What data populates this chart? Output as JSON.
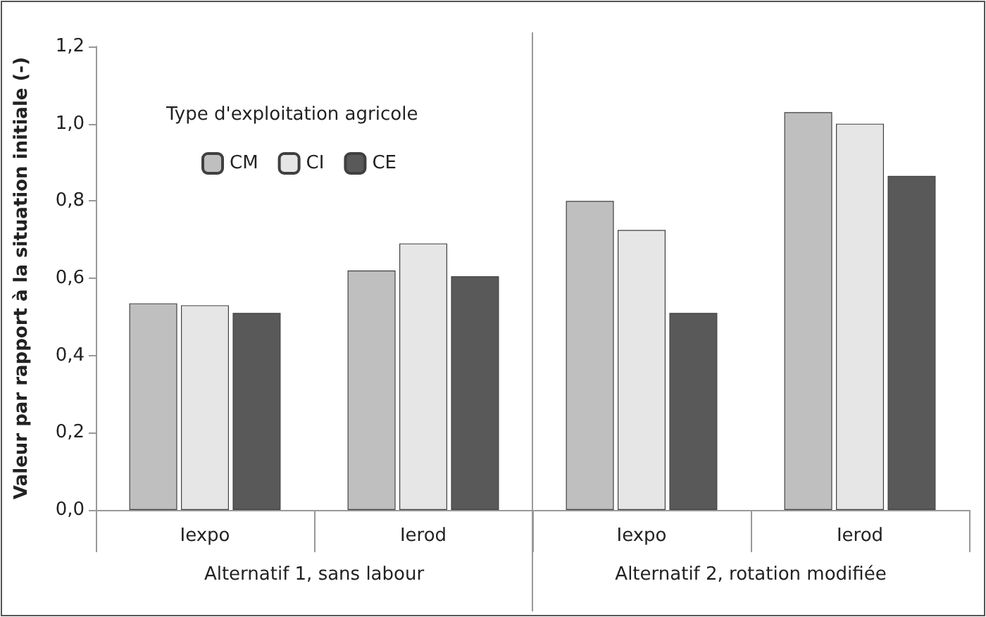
{
  "chart_data": {
    "type": "bar",
    "ylabel": "Valeur par rapport à la situation initiale (-)",
    "legend_title": "Type d'exploitation agricole",
    "categories": [
      "Iexpo",
      "Ierod",
      "Iexpo",
      "Ierod"
    ],
    "series": [
      {
        "name": "CM",
        "color": "#bfbfbf",
        "values": [
          0.535,
          0.62,
          0.8,
          1.03
        ]
      },
      {
        "name": "CI",
        "color": "#e6e6e6",
        "values": [
          0.53,
          0.69,
          0.725,
          1.0
        ]
      },
      {
        "name": "CE",
        "color": "#595959",
        "values": [
          0.51,
          0.605,
          0.51,
          0.865
        ]
      }
    ],
    "ylim": [
      0,
      1.2
    ],
    "yticks": [
      {
        "value": 0,
        "label": "0,0"
      },
      {
        "value": 0.2,
        "label": "0,2"
      },
      {
        "value": 0.4,
        "label": "0,4"
      },
      {
        "value": 0.6,
        "label": "0,6"
      },
      {
        "value": 0.8,
        "label": "0,8"
      },
      {
        "value": 1,
        "label": "1,0"
      },
      {
        "value": 1.2,
        "label": "1,2"
      }
    ],
    "grid": false,
    "legend": "top left",
    "annotations": [
      "Alternatif 1, sans labour",
      "Alternatif 2, rotation modifiée"
    ]
  }
}
